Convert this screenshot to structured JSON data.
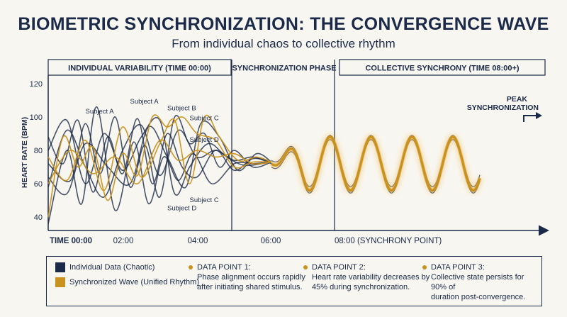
{
  "header": {
    "title": "BIOMETRIC SYNCHRONIZATION: THE CONVERGENCE WAVE",
    "subtitle": "From individual chaos to collective rhythm"
  },
  "phases": {
    "individual": "INDIVIDUAL VARIABILITY (TIME 00:00)",
    "sync": "SYNCHRONIZATION PHASE",
    "collective": "COLLECTIVE SYNCHRONY (TIME 08:00+)"
  },
  "peak_label_1": "PEAK",
  "peak_label_2": "SYNCHRONIZATION",
  "legend": {
    "individual": "Individual Data (Chaotic)",
    "sync": "Synchronized Wave (Unified Rhythm)",
    "dp1_title": "DATA POINT 1:",
    "dp1_line1": "Phase alignment occurs rapidly",
    "dp1_line2": "after initiating shared stimulus.",
    "dp2_title": "DATA POINT 2:",
    "dp2_line1": "Heart rate variability decreases by",
    "dp2_line2": "45% during synchronization.",
    "dp3_title": "DATA POINT 3:",
    "dp3_line1": "Collective state persists for 90% of",
    "dp3_line2": "duration post-convergence."
  },
  "colors": {
    "navy": "#1b2a48",
    "gold": "#c9921e",
    "gold_light": "#e6a52a"
  },
  "chart_data": {
    "type": "line",
    "ylabel": "HEART RATE (BPM)",
    "yticks": [
      40,
      60,
      80,
      100,
      120
    ],
    "ylim": [
      32,
      125
    ],
    "xticks": [
      "TIME 00:00",
      "02:00",
      "04:00",
      "06:00",
      "08:00 (SYNCHRONY POINT)"
    ],
    "subject_labels": [
      {
        "text": "Subject A",
        "x": 1.0,
        "y": 102
      },
      {
        "text": "Subject A",
        "x": 2.2,
        "y": 108
      },
      {
        "text": "Subject B",
        "x": 3.2,
        "y": 104
      },
      {
        "text": "Subject C",
        "x": 3.8,
        "y": 98
      },
      {
        "text": "Subject D",
        "x": 3.8,
        "y": 85
      },
      {
        "text": "Subject C",
        "x": 3.8,
        "y": 49
      },
      {
        "text": "Subject D",
        "x": 3.2,
        "y": 44
      }
    ],
    "series": [
      {
        "color": "navy",
        "values": [
          [
            0,
            58
          ],
          [
            0.5,
            92
          ],
          [
            1.0,
            70
          ],
          [
            1.5,
            52
          ],
          [
            2.0,
            80
          ],
          [
            2.5,
            95
          ],
          [
            3.0,
            65
          ],
          [
            3.5,
            92
          ],
          [
            4.0,
            76
          ],
          [
            4.5,
            80
          ],
          [
            5.0,
            74
          ],
          [
            5.5,
            76
          ],
          [
            6.0,
            72
          ]
        ]
      },
      {
        "color": "navy",
        "values": [
          [
            0,
            88
          ],
          [
            0.4,
            72
          ],
          [
            0.8,
            98
          ],
          [
            1.2,
            55
          ],
          [
            1.6,
            88
          ],
          [
            2.0,
            66
          ],
          [
            2.4,
            99
          ],
          [
            2.8,
            60
          ],
          [
            3.2,
            90
          ],
          [
            3.6,
            70
          ],
          [
            4.0,
            64
          ],
          [
            4.5,
            80
          ],
          [
            5.0,
            68
          ],
          [
            5.5,
            75
          ],
          [
            6.0,
            73
          ]
        ]
      },
      {
        "color": "navy",
        "values": [
          [
            0,
            72
          ],
          [
            0.6,
            62
          ],
          [
            1.0,
            96
          ],
          [
            1.4,
            66
          ],
          [
            1.8,
            100
          ],
          [
            2.2,
            58
          ],
          [
            2.6,
            83
          ],
          [
            3.0,
            52
          ],
          [
            3.4,
            100
          ],
          [
            3.8,
            84
          ],
          [
            4.2,
            90
          ],
          [
            4.6,
            70
          ],
          [
            5.0,
            80
          ],
          [
            5.5,
            70
          ],
          [
            6.0,
            73
          ]
        ]
      },
      {
        "color": "navy",
        "values": [
          [
            0,
            36
          ],
          [
            0.5,
            80
          ],
          [
            0.9,
            48
          ],
          [
            1.3,
            106
          ],
          [
            1.8,
            44
          ],
          [
            2.3,
            85
          ],
          [
            2.7,
            48
          ],
          [
            3.1,
            76
          ],
          [
            3.5,
            62
          ],
          [
            3.9,
            78
          ],
          [
            4.4,
            60
          ],
          [
            5.0,
            72
          ],
          [
            5.5,
            72
          ],
          [
            6.0,
            73
          ]
        ]
      },
      {
        "color": "navy",
        "values": [
          [
            0,
            64
          ],
          [
            0.5,
            54
          ],
          [
            1.0,
            84
          ],
          [
            1.6,
            70
          ],
          [
            2.2,
            60
          ],
          [
            2.7,
            94
          ],
          [
            3.2,
            76
          ],
          [
            3.7,
            58
          ],
          [
            4.1,
            96
          ],
          [
            4.6,
            88
          ],
          [
            5.1,
            68
          ],
          [
            5.6,
            78
          ],
          [
            6.0,
            73
          ]
        ]
      },
      {
        "color": "navy",
        "values": [
          [
            0,
            80
          ],
          [
            0.5,
            98
          ],
          [
            1.0,
            60
          ],
          [
            1.5,
            90
          ],
          [
            2.0,
            68
          ],
          [
            2.5,
            88
          ],
          [
            3.0,
            98
          ],
          [
            3.4,
            54
          ],
          [
            3.8,
            70
          ],
          [
            4.3,
            84
          ],
          [
            4.8,
            76
          ],
          [
            5.3,
            71
          ],
          [
            6.0,
            73
          ]
        ]
      },
      {
        "color": "gold",
        "values": [
          [
            0,
            40
          ],
          [
            0.4,
            88
          ],
          [
            0.8,
            70
          ],
          [
            1.2,
            82
          ],
          [
            1.6,
            50
          ],
          [
            2.0,
            78
          ],
          [
            2.4,
            65
          ],
          [
            2.8,
            100
          ],
          [
            3.2,
            94
          ],
          [
            3.6,
            100
          ],
          [
            4.0,
            90
          ],
          [
            4.5,
            86
          ],
          [
            5.0,
            70
          ],
          [
            5.5,
            73
          ],
          [
            6.0,
            73
          ]
        ]
      },
      {
        "color": "gold",
        "values": [
          [
            0,
            76
          ],
          [
            0.5,
            62
          ],
          [
            1.0,
            86
          ],
          [
            1.5,
            56
          ],
          [
            2.0,
            94
          ],
          [
            2.5,
            64
          ],
          [
            3.0,
            84
          ],
          [
            3.4,
            98
          ],
          [
            3.8,
            60
          ],
          [
            4.2,
            100
          ],
          [
            4.6,
            88
          ],
          [
            5.1,
            74
          ],
          [
            5.6,
            76
          ],
          [
            6.0,
            73
          ]
        ]
      },
      {
        "color": "gold",
        "values": [
          [
            0,
            60
          ],
          [
            0.6,
            80
          ],
          [
            1.2,
            66
          ],
          [
            1.8,
            76
          ],
          [
            2.4,
            60
          ],
          [
            3.0,
            86
          ],
          [
            3.5,
            74
          ],
          [
            4.0,
            80
          ],
          [
            4.5,
            76
          ],
          [
            5.0,
            78
          ],
          [
            5.5,
            72
          ],
          [
            6.0,
            73
          ]
        ]
      }
    ],
    "sync_wave": {
      "start_x": 6.0,
      "end_x": 11.6,
      "center": 72,
      "amplitude": 16,
      "period": 1.1
    }
  }
}
